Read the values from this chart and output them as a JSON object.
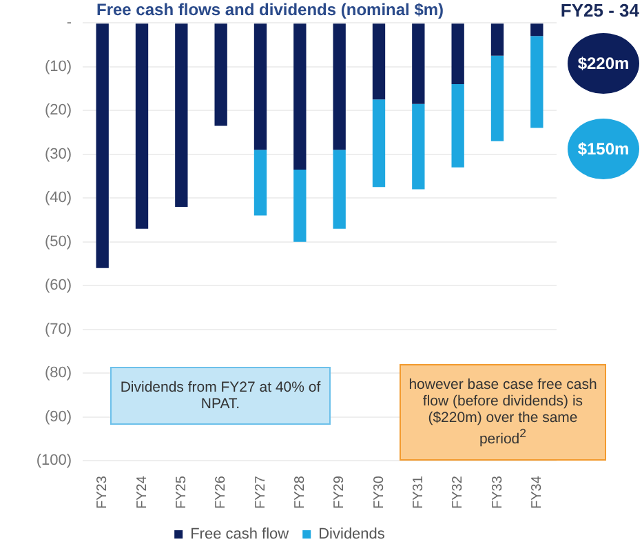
{
  "chart_data": {
    "type": "bar",
    "title": "Free cash flows and dividends (nominal $m)",
    "categories": [
      "FY23",
      "FY24",
      "FY25",
      "FY26",
      "FY27",
      "FY28",
      "FY29",
      "FY30",
      "FY31",
      "FY32",
      "FY33",
      "FY34"
    ],
    "series": [
      {
        "name": "Free cash flow",
        "color": "#0d1f5c",
        "values": [
          -56,
          -47,
          -42,
          -23.5,
          -29,
          -33.5,
          -29,
          -17.5,
          -18.5,
          -14,
          -7.5,
          -3
        ]
      },
      {
        "name": "Dividends",
        "color": "#1ea7e0",
        "values": [
          null,
          null,
          null,
          null,
          -15,
          -16.5,
          -18,
          -20,
          -19.5,
          -19,
          -19.5,
          -21
        ]
      }
    ],
    "stacked": true,
    "ylim": [
      -100,
      0
    ],
    "yticks": [
      {
        "value": 0,
        "label": "-"
      },
      {
        "value": -10,
        "label": "(10)"
      },
      {
        "value": -20,
        "label": "(20)"
      },
      {
        "value": -30,
        "label": "(30)"
      },
      {
        "value": -40,
        "label": "(40)"
      },
      {
        "value": -50,
        "label": "(50)"
      },
      {
        "value": -60,
        "label": "(60)"
      },
      {
        "value": -70,
        "label": "(70)"
      },
      {
        "value": -80,
        "label": "(80)"
      },
      {
        "value": -90,
        "label": "(90)"
      },
      {
        "value": -100,
        "label": "(100)"
      }
    ],
    "grid": "y",
    "legend": "bottom",
    "annotations": [
      "FY25 - 34",
      "$220m",
      "$150m",
      "Dividends from FY27 at 40% of NPAT.",
      "however base case free cash flow (before dividends) is ($220m) over the same period$^{2}$"
    ]
  }
}
